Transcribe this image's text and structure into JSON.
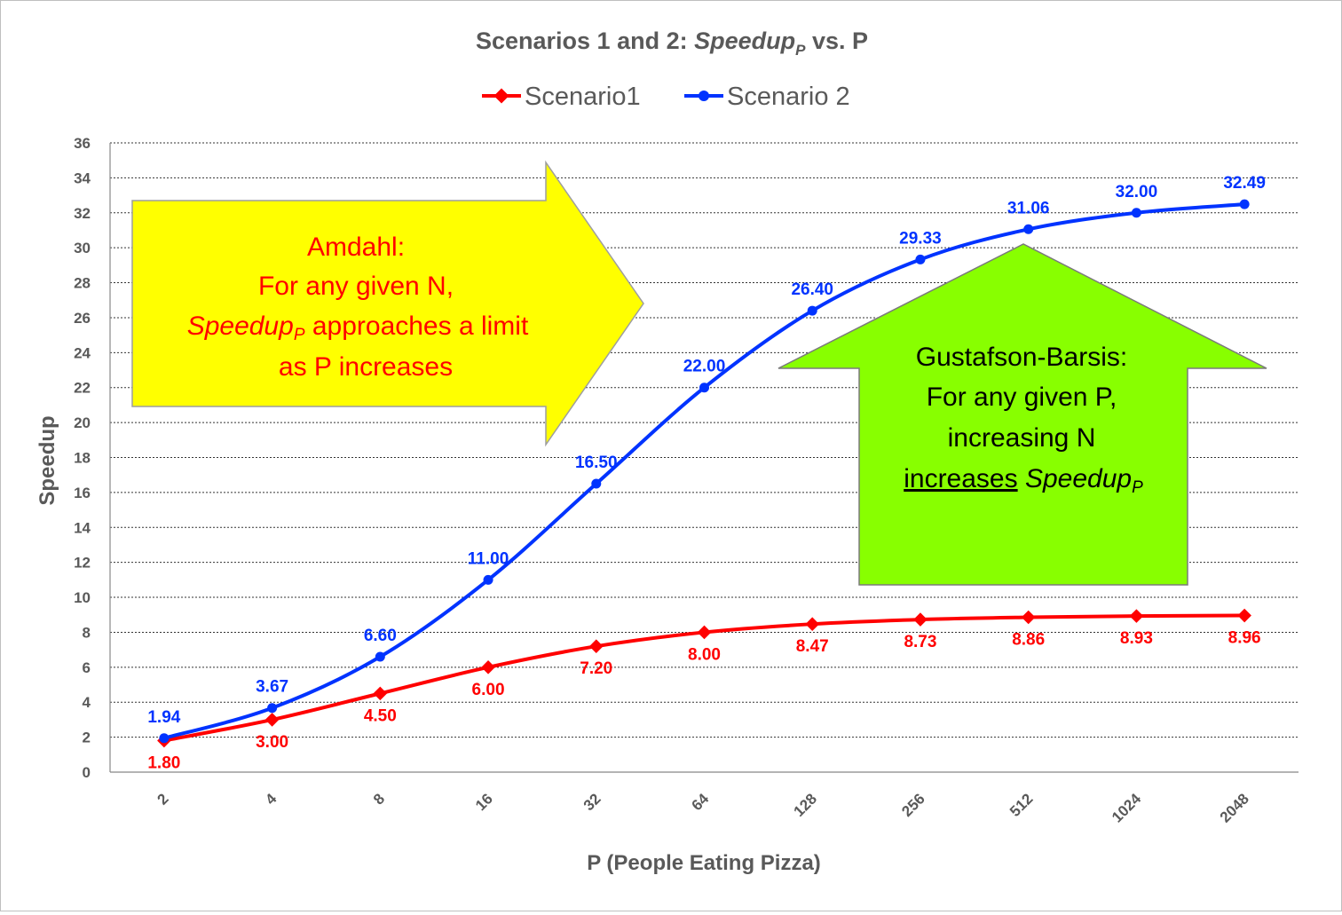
{
  "chart_data": {
    "type": "line",
    "title": {
      "main": "Scenarios 1 and 2: ",
      "italic": "Speedup",
      "sub": "P",
      "tail": " vs. P"
    },
    "xlabel": "P (People Eating Pizza)",
    "ylabel": "Speedup",
    "ylim": [
      0,
      36
    ],
    "ystep": 2,
    "grid": true,
    "legend_position": "top",
    "categories": [
      "2",
      "4",
      "8",
      "16",
      "32",
      "64",
      "128",
      "256",
      "512",
      "1024",
      "2048"
    ],
    "series": [
      {
        "name": "Scenario1",
        "color": "#ff0000",
        "marker": "diamond",
        "values": [
          1.8,
          3.0,
          4.5,
          6.0,
          7.2,
          8.0,
          8.47,
          8.73,
          8.86,
          8.93,
          8.96
        ],
        "labels": [
          "1.80",
          "3.00",
          "4.50",
          "6.00",
          "7.20",
          "8.00",
          "8.47",
          "8.73",
          "8.86",
          "8.93",
          "8.96"
        ]
      },
      {
        "name": "Scenario 2",
        "color": "#0033ff",
        "marker": "circle",
        "values": [
          1.94,
          3.67,
          6.6,
          11.0,
          16.5,
          22.0,
          26.4,
          29.33,
          31.06,
          32.0,
          32.49
        ],
        "labels": [
          "1.94",
          "3.67",
          "6.60",
          "11.00",
          "16.50",
          "22.00",
          "26.40",
          "29.33",
          "31.06",
          "32.00",
          "32.49"
        ]
      }
    ],
    "annotations": {
      "amdahl": {
        "fill": "#ffff00",
        "line1": "Amdahl:",
        "line2": "For any given N,",
        "line3_italic": "Speedup",
        "line3_sub": "P",
        "line3_rest": " approaches a limit",
        "line4": "as P increases"
      },
      "gustafson": {
        "fill": "#88ff00",
        "line1": "Gustafson-Barsis:",
        "line2": "For any given P,",
        "line3": "increasing N",
        "line4_underline": "increases",
        "line4_italic": " Speedup",
        "line4_sub": "P"
      }
    }
  }
}
